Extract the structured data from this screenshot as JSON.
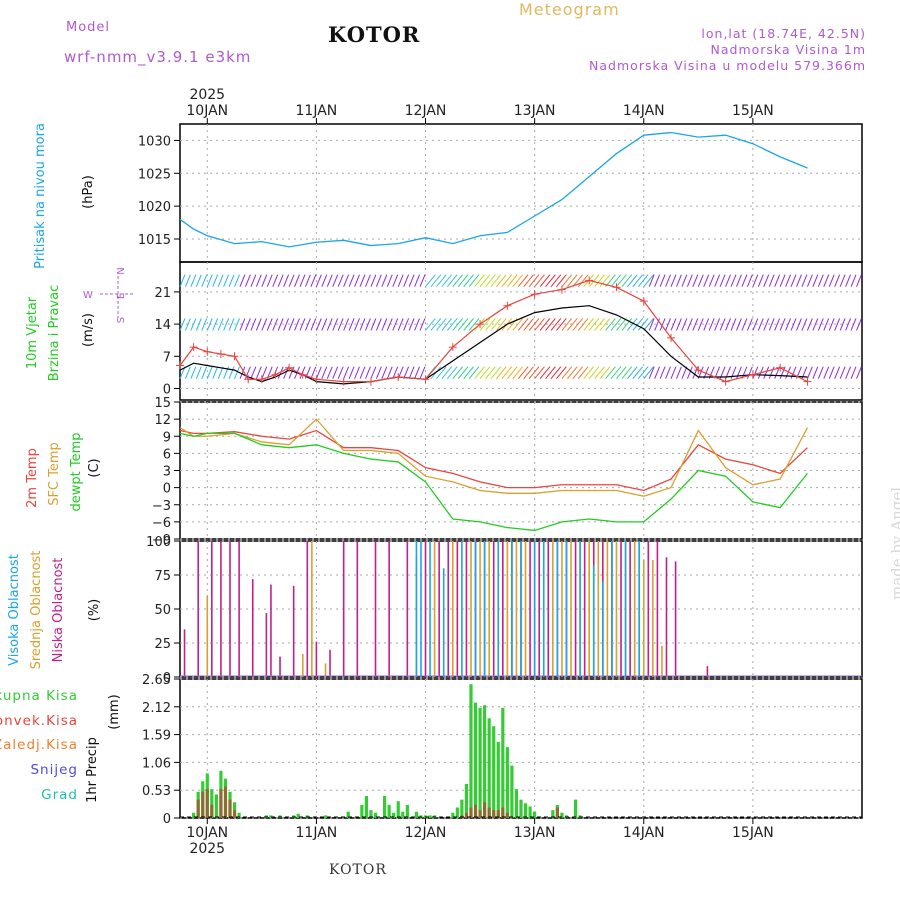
{
  "header": {
    "model_label": "Model",
    "model_name": "wrf-nmm_v3.9.1 e3km",
    "station": "KOTOR",
    "meteogram": "Meteogram",
    "lonlat": "lon,lat (18.74E, 42.5N)",
    "elevation": "Nadmorska Visina 1m",
    "model_elevation": "Nadmorska Visina u modelu 579.366m",
    "credit": "made by Angel",
    "footer_station": "KOTOR"
  },
  "colors": {
    "pressure": "#1aa6e8",
    "temp2m": "#e8453c",
    "sfc": "#d9a030",
    "dewpt": "#22cc22",
    "high_cloud": "#1aa6e8",
    "mid_cloud": "#d9a030",
    "low_cloud": "#c0208a",
    "total_precip": "#33cc33",
    "conv_precip": "#e8453c",
    "frozen": "#f08030",
    "snow": "#4b4bdd",
    "hail": "#20c0b0"
  },
  "chart_data": [
    {
      "id": "pressure",
      "type": "line",
      "ylabel": "Pritisak na nivou mora",
      "unit": "(hPa)",
      "yticks": [
        1015,
        1020,
        1025,
        1030
      ],
      "ylim": [
        1011.5,
        1032.5
      ],
      "x_hours_from_start": [
        0,
        3,
        6,
        12,
        18,
        24,
        30,
        36,
        42,
        48,
        54,
        60,
        66,
        72,
        78,
        84,
        90,
        96,
        102,
        108,
        114,
        120,
        126,
        132,
        138
      ],
      "series": [
        {
          "name": "MSLP",
          "values": [
            1018.0,
            1016.5,
            1015.5,
            1014.3,
            1014.6,
            1013.8,
            1014.5,
            1014.8,
            1014.0,
            1014.3,
            1015.2,
            1014.3,
            1015.5,
            1016.0,
            1018.5,
            1021.0,
            1024.5,
            1028.0,
            1030.8,
            1031.2,
            1030.5,
            1030.8,
            1029.5,
            1027.5,
            1025.8
          ]
        }
      ]
    },
    {
      "id": "wind",
      "type": "line",
      "ylabel": "10m Vjetar Brzina i Pravac",
      "unit": "(m/s)",
      "direction_legend": {
        "north": "N",
        "west": "W",
        "east": "E",
        "south": "S"
      },
      "yticks": [
        0,
        7,
        14,
        21
      ],
      "ylim": [
        -2.5,
        27.5
      ],
      "x_hours_from_start": [
        0,
        3,
        6,
        9,
        12,
        15,
        18,
        21,
        24,
        27,
        30,
        36,
        42,
        48,
        54,
        60,
        66,
        72,
        78,
        84,
        90,
        96,
        102,
        108,
        114,
        120,
        126,
        132,
        138
      ],
      "series": [
        {
          "name": "wind speed",
          "values": [
            4.0,
            5.5,
            5.0,
            4.5,
            4.0,
            2.5,
            1.5,
            2.5,
            4.0,
            3.0,
            1.5,
            1.0,
            1.5,
            2.5,
            2.0,
            6.0,
            10.0,
            14.0,
            16.5,
            17.5,
            18.0,
            16.0,
            13.0,
            7.0,
            2.5,
            2.5,
            3.0,
            2.8,
            2.5
          ]
        },
        {
          "name": "wind gust",
          "values": [
            5.0,
            9.0,
            8.0,
            7.5,
            7.0,
            2.0,
            2.0,
            3.0,
            4.5,
            3.0,
            2.0,
            1.5,
            1.5,
            2.5,
            2.0,
            9.0,
            14.0,
            18.0,
            20.5,
            21.5,
            23.5,
            22.0,
            19.0,
            11.0,
            4.0,
            1.5,
            3.0,
            4.5,
            1.5
          ]
        }
      ],
      "barb_rows_ms": [
        3.0,
        13.5,
        23.0
      ]
    },
    {
      "id": "temperature",
      "type": "line",
      "ylabel": "2m Temp / SFC Temp / dewpt Temp",
      "unit": "(C)",
      "yticks": [
        -9,
        -6,
        -3,
        0,
        3,
        6,
        9,
        12,
        15
      ],
      "ylim": [
        -9,
        15
      ],
      "x_hours_from_start": [
        0,
        3,
        6,
        12,
        18,
        24,
        30,
        36,
        42,
        48,
        54,
        60,
        66,
        72,
        78,
        84,
        90,
        96,
        102,
        108,
        114,
        120,
        126,
        132,
        138
      ],
      "series": [
        {
          "name": "2m Temp",
          "values": [
            10.0,
            9.5,
            9.5,
            9.8,
            9.0,
            8.5,
            10.0,
            7.0,
            7.0,
            6.5,
            3.5,
            2.5,
            1.0,
            0.0,
            0.0,
            0.5,
            0.5,
            0.5,
            -0.5,
            1.5,
            7.5,
            5.0,
            4.0,
            2.5,
            7.0
          ]
        },
        {
          "name": "SFC Temp",
          "values": [
            10.5,
            9.0,
            9.0,
            9.5,
            8.0,
            7.5,
            12.0,
            6.5,
            6.5,
            6.0,
            2.0,
            1.0,
            -0.5,
            -1.0,
            -1.0,
            -0.5,
            -0.5,
            -0.5,
            -1.5,
            0.0,
            10.0,
            3.5,
            0.5,
            1.5,
            10.5
          ]
        },
        {
          "name": "dewpt Temp",
          "values": [
            9.5,
            9.0,
            9.5,
            9.5,
            7.5,
            7.0,
            7.5,
            6.0,
            5.0,
            4.5,
            1.0,
            -5.5,
            -6.0,
            -7.0,
            -7.5,
            -6.0,
            -5.5,
            -6.0,
            -6.0,
            -2.0,
            3.0,
            2.0,
            -2.5,
            -3.5,
            2.5
          ]
        }
      ]
    },
    {
      "id": "clouds",
      "type": "bar",
      "ylabel": "Visoka Oblacnost / Srednja Oblacnost / Niska Oblacnost",
      "unit": "(%)",
      "yticks": [
        0,
        25,
        50,
        75,
        100
      ],
      "ylim": [
        0,
        100
      ],
      "series": [
        {
          "name": "Niska Oblacnost",
          "hours": [
            1,
            4,
            7,
            9,
            11,
            13,
            16,
            19,
            20,
            22,
            25,
            28,
            30,
            33,
            36,
            39,
            43,
            46,
            50,
            54,
            57,
            59,
            61,
            63,
            65,
            67,
            69,
            71,
            73,
            75,
            77,
            79,
            81,
            83,
            85,
            87,
            89,
            91,
            93,
            95,
            97,
            99,
            101,
            103,
            105,
            107,
            109,
            116
          ],
          "values": [
            35,
            100,
            100,
            100,
            100,
            100,
            72,
            47,
            68,
            15,
            67,
            100,
            26,
            20,
            100,
            100,
            100,
            100,
            100,
            100,
            100,
            100,
            100,
            100,
            100,
            100,
            100,
            100,
            100,
            100,
            100,
            100,
            100,
            100,
            100,
            100,
            100,
            100,
            100,
            100,
            100,
            100,
            100,
            100,
            100,
            88,
            85,
            8
          ]
        },
        {
          "name": "Srednja Oblacnost",
          "hours": [
            6,
            27,
            29,
            32,
            52,
            56,
            60,
            64,
            66,
            68,
            70,
            72,
            74,
            76,
            78,
            80,
            82,
            84,
            86,
            88,
            90,
            92,
            94,
            96,
            98,
            100,
            102,
            104,
            106
          ],
          "values": [
            60,
            17,
            100,
            10,
            87,
            100,
            100,
            100,
            100,
            100,
            100,
            100,
            100,
            100,
            100,
            100,
            100,
            100,
            100,
            100,
            100,
            100,
            100,
            100,
            100,
            100,
            86,
            86,
            23
          ]
        },
        {
          "name": "Visoka Oblacnost",
          "hours": [
            52,
            53,
            55,
            58,
            62,
            65,
            67,
            70,
            73,
            75,
            78,
            80,
            83,
            85,
            88,
            91,
            93,
            95,
            98,
            101
          ],
          "values": [
            100,
            100,
            100,
            80,
            100,
            100,
            100,
            100,
            100,
            100,
            100,
            100,
            100,
            100,
            100,
            82,
            70,
            100,
            100,
            100
          ]
        }
      ]
    },
    {
      "id": "precipitation",
      "type": "bar",
      "ylabel": "1hr Precip",
      "unit": "(mm)",
      "yticks": [
        0,
        0.53,
        1.06,
        1.59,
        2.12,
        2.65
      ],
      "ylim": [
        0,
        2.65
      ],
      "legend": [
        "Ukupna Kisa",
        "Konvek.Kisa",
        "Zaledj.Kisa",
        "Snijeg",
        "Grad"
      ],
      "series": [
        {
          "name": "Ukupna Kisa",
          "hours": [
            3,
            4,
            5,
            6,
            7,
            8,
            9,
            10,
            11,
            12,
            13,
            19,
            20,
            22,
            25,
            26,
            28,
            32,
            37,
            40,
            41,
            42,
            43,
            45,
            46,
            47,
            48,
            49,
            50,
            52,
            53,
            54,
            55,
            56,
            60,
            61,
            62,
            63,
            64,
            65,
            66,
            67,
            68,
            69,
            70,
            71,
            72,
            73,
            74,
            75,
            76,
            77,
            78,
            82,
            83,
            84,
            85,
            87,
            88
          ],
          "values": [
            0.1,
            0.5,
            0.7,
            0.85,
            0.55,
            0.45,
            0.9,
            0.75,
            0.5,
            0.3,
            0.1,
            0.05,
            0.05,
            0.05,
            0.05,
            0.08,
            0.05,
            0.05,
            0.12,
            0.25,
            0.42,
            0.15,
            0.1,
            0.42,
            0.25,
            0.1,
            0.32,
            0.12,
            0.25,
            0.12,
            0.05,
            0.05,
            0.05,
            0.05,
            0.1,
            0.2,
            0.35,
            0.65,
            2.55,
            2.2,
            2.1,
            2.15,
            1.9,
            1.75,
            1.45,
            2.1,
            1.35,
            1.0,
            0.55,
            0.35,
            0.28,
            0.22,
            0.12,
            0.15,
            0.25,
            0.1,
            0.05,
            0.35,
            0.05
          ]
        },
        {
          "name": "Konvek.Kisa",
          "hours": [
            4,
            5,
            6,
            7,
            9,
            10,
            11,
            12,
            62,
            63,
            64,
            65,
            66,
            67,
            68,
            69,
            70,
            71,
            72,
            83
          ],
          "values": [
            0.35,
            0.5,
            0.55,
            0.25,
            0.55,
            0.6,
            0.35,
            0.15,
            0.05,
            0.1,
            0.2,
            0.25,
            0.15,
            0.3,
            0.2,
            0.15,
            0.15,
            0.2,
            0.1,
            0.2
          ]
        }
      ]
    },
    {
      "id": "time-axis",
      "type": "table",
      "year": "2025",
      "day_labels": [
        "10JAN",
        "11JAN",
        "12JAN",
        "13JAN",
        "14JAN",
        "15JAN"
      ],
      "day_start_hour": [
        6,
        30,
        54,
        78,
        102,
        126
      ],
      "total_hours": 150
    }
  ]
}
